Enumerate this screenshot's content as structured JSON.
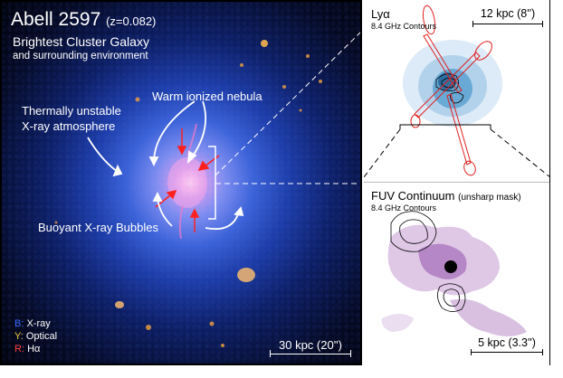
{
  "main_panel": {
    "title": "Abell 2597",
    "redshift": "(z=0.082)",
    "subtitle_line1": "Brightest Cluster Galaxy",
    "subtitle_line2": "and surrounding environment",
    "label_xray_atmosphere_line1": "Thermally unstable",
    "label_xray_atmosphere_line2": "X-ray atmosphere",
    "label_nebula": "Warm ionized nebula",
    "label_bubbles": "Buoyant X-ray Bubbles",
    "legend": {
      "b_key": "B:",
      "b_label": "X-ray",
      "y_key": "Y:",
      "y_label": "Optical",
      "r_key": "R:",
      "r_label": "Hα"
    },
    "scale_label": "30 kpc (20'')"
  },
  "top_panel": {
    "title": "Lyα",
    "subtitle": "8.4 GHz Contours",
    "scale_label": "12 kpc (8'')"
  },
  "bottom_panel": {
    "title": "FUV Continuum",
    "title_note": "(unsharp mask)",
    "subtitle": "8.4 GHz Contours",
    "scale_label": "5 kpc (3.3'')"
  },
  "colors": {
    "xray": "#3d6bff",
    "optical": "#f3c63a",
    "halpha": "#ff3b3b",
    "fuv": "#8a3b9c",
    "lya": "#3a8fc7"
  }
}
